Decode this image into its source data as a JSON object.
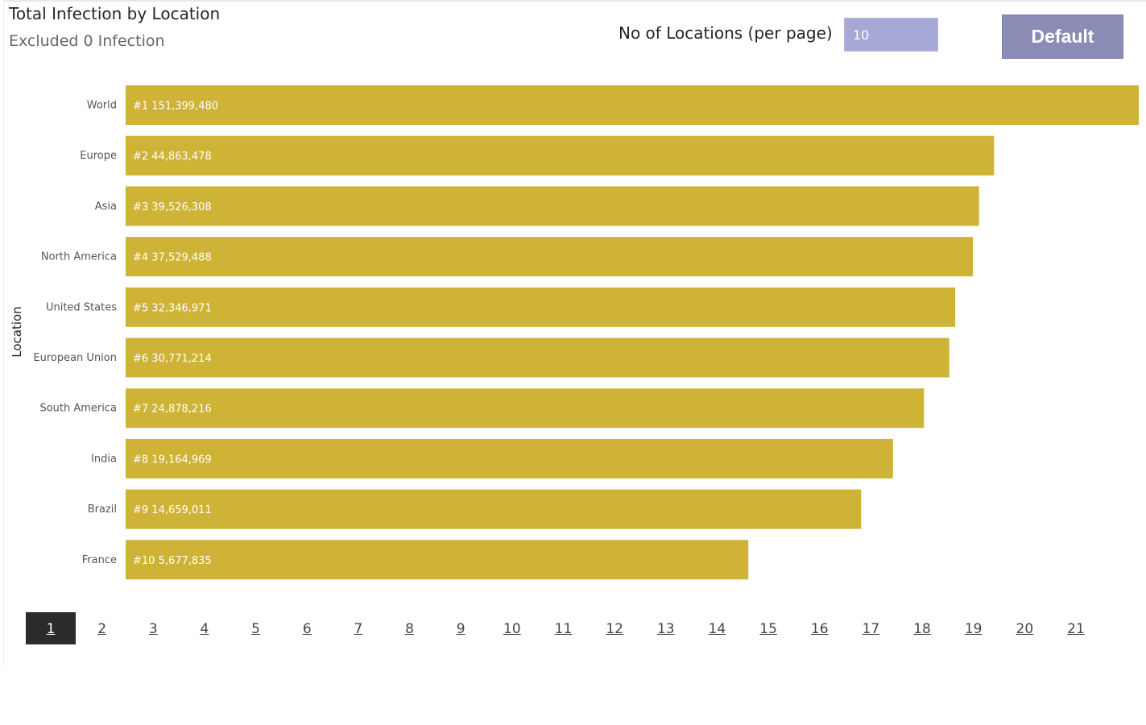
{
  "header": {
    "title": "Total Infection by Location",
    "subtitle": "Excluded 0 Infection"
  },
  "controls": {
    "per_page_label": "No of Locations (per page)",
    "per_page_value": "10",
    "default_button_label": "Default"
  },
  "chart_data": {
    "type": "bar",
    "orientation": "horizontal",
    "ylabel": "Location",
    "bar_color": "#cfb337",
    "label_color": "#ffffff",
    "categories": [
      "World",
      "Europe",
      "Asia",
      "North America",
      "United States",
      "European Union",
      "South America",
      "India",
      "Brazil",
      "France"
    ],
    "values": [
      151399480,
      44863478,
      39526308,
      37529488,
      32346971,
      30771214,
      24878216,
      19164969,
      14659011,
      5677835
    ],
    "data_labels": [
      "#1 151,399,480",
      "#2 44,863,478",
      "#3 39,526,308",
      "#4 37,529,488",
      "#5 32,346,971",
      "#6 30,771,214",
      "#7 24,878,216",
      "#8 19,164,969",
      "#9 14,659,011",
      "#10 5,677,835"
    ],
    "scale": "log"
  },
  "pagination": {
    "current": "1",
    "pages": [
      "1",
      "2",
      "3",
      "4",
      "5",
      "6",
      "7",
      "8",
      "9",
      "10",
      "11",
      "12",
      "13",
      "14",
      "15",
      "16",
      "17",
      "18",
      "19",
      "20",
      "21"
    ]
  }
}
